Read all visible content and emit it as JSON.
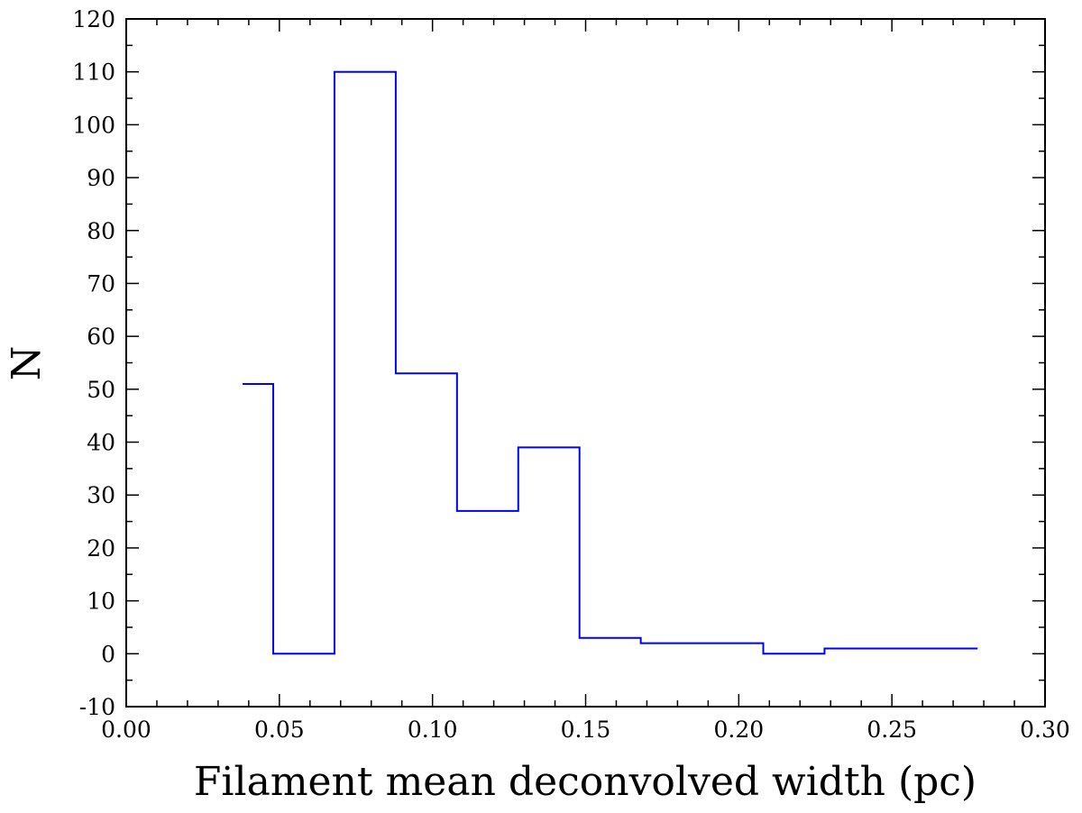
{
  "chart_data": {
    "type": "line",
    "step": true,
    "title": "",
    "xlabel": "Filament mean deconvolved width (pc)",
    "ylabel": "N",
    "xlim": [
      0.0,
      0.3
    ],
    "ylim": [
      -10,
      120
    ],
    "x_ticks": [
      "0.00",
      "0.05",
      "0.10",
      "0.15",
      "0.20",
      "0.25",
      "0.30"
    ],
    "y_ticks": [
      "-10",
      "0",
      "10",
      "20",
      "30",
      "40",
      "50",
      "60",
      "70",
      "80",
      "90",
      "100",
      "110",
      "120"
    ],
    "grid": false,
    "series": [
      {
        "color": "#0000ff",
        "bins": [
          {
            "x0": 0.038,
            "x1": 0.048,
            "value": 51
          },
          {
            "x0": 0.048,
            "x1": 0.068,
            "value": 0
          },
          {
            "x0": 0.068,
            "x1": 0.088,
            "value": 110
          },
          {
            "x0": 0.088,
            "x1": 0.108,
            "value": 53
          },
          {
            "x0": 0.108,
            "x1": 0.128,
            "value": 27
          },
          {
            "x0": 0.128,
            "x1": 0.148,
            "value": 39
          },
          {
            "x0": 0.148,
            "x1": 0.168,
            "value": 3
          },
          {
            "x0": 0.168,
            "x1": 0.208,
            "value": 2
          },
          {
            "x0": 0.208,
            "x1": 0.228,
            "value": 0
          },
          {
            "x0": 0.228,
            "x1": 0.278,
            "value": 1
          }
        ]
      }
    ]
  }
}
